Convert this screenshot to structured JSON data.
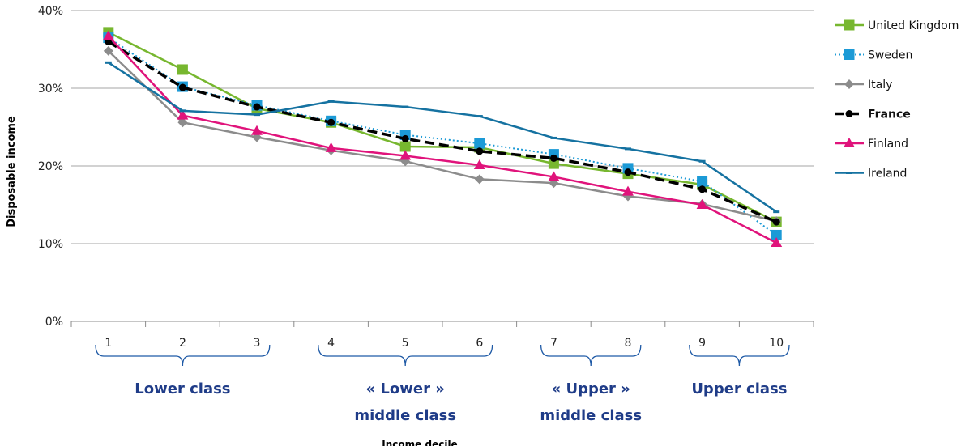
{
  "chart_data": {
    "type": "line",
    "title": "",
    "xlabel": "Income decile",
    "ylabel": "Disposable income",
    "x": [
      1,
      2,
      3,
      4,
      5,
      6,
      7,
      8,
      9,
      10
    ],
    "ylim": [
      0,
      40
    ],
    "yticks": [
      "0%",
      "10%",
      "20%",
      "30%",
      "40%"
    ],
    "legend_position": "right",
    "grid": "horizontal",
    "series": [
      {
        "name": "United Kingdom",
        "color": "#77b72f",
        "marker": "square",
        "dash": "solid",
        "values": [
          37.2,
          32.4,
          27.4,
          25.6,
          22.5,
          22.4,
          20.3,
          19.0,
          17.6,
          12.8
        ]
      },
      {
        "name": "Sweden",
        "color": "#1c9ad6",
        "marker": "square",
        "dash": "dotted",
        "values": [
          36.5,
          30.2,
          27.8,
          25.8,
          24.0,
          22.9,
          21.5,
          19.7,
          18.0,
          11.1
        ]
      },
      {
        "name": "Italy",
        "color": "#8c8c8c",
        "marker": "diamond",
        "dash": "solid",
        "values": [
          34.8,
          25.6,
          23.7,
          22.0,
          20.6,
          18.3,
          17.8,
          16.1,
          15.1,
          12.9
        ]
      },
      {
        "name": "France",
        "color": "#000000",
        "marker": "circle",
        "dash": "dashed",
        "values": [
          36.0,
          30.1,
          27.6,
          25.6,
          23.5,
          21.9,
          21.0,
          19.2,
          17.0,
          12.8
        ]
      },
      {
        "name": "Finland",
        "color": "#e0137b",
        "marker": "triangle",
        "dash": "solid",
        "values": [
          36.7,
          26.5,
          24.5,
          22.3,
          21.3,
          20.1,
          18.6,
          16.7,
          15.0,
          10.1
        ]
      },
      {
        "name": "Ireland",
        "color": "#1572a1",
        "marker": "dash",
        "dash": "solid",
        "values": [
          33.3,
          27.1,
          26.6,
          28.3,
          27.6,
          26.4,
          23.6,
          22.2,
          20.6,
          14.1
        ]
      }
    ],
    "groups": [
      {
        "lines": [
          "Lower class"
        ],
        "from": 1,
        "to": 3
      },
      {
        "lines": [
          "« Lower »",
          "middle class"
        ],
        "from": 4,
        "to": 6
      },
      {
        "lines": [
          "« Upper »",
          "middle class"
        ],
        "from": 7,
        "to": 8
      },
      {
        "lines": [
          "Upper class"
        ],
        "from": 9,
        "to": 10
      }
    ]
  }
}
